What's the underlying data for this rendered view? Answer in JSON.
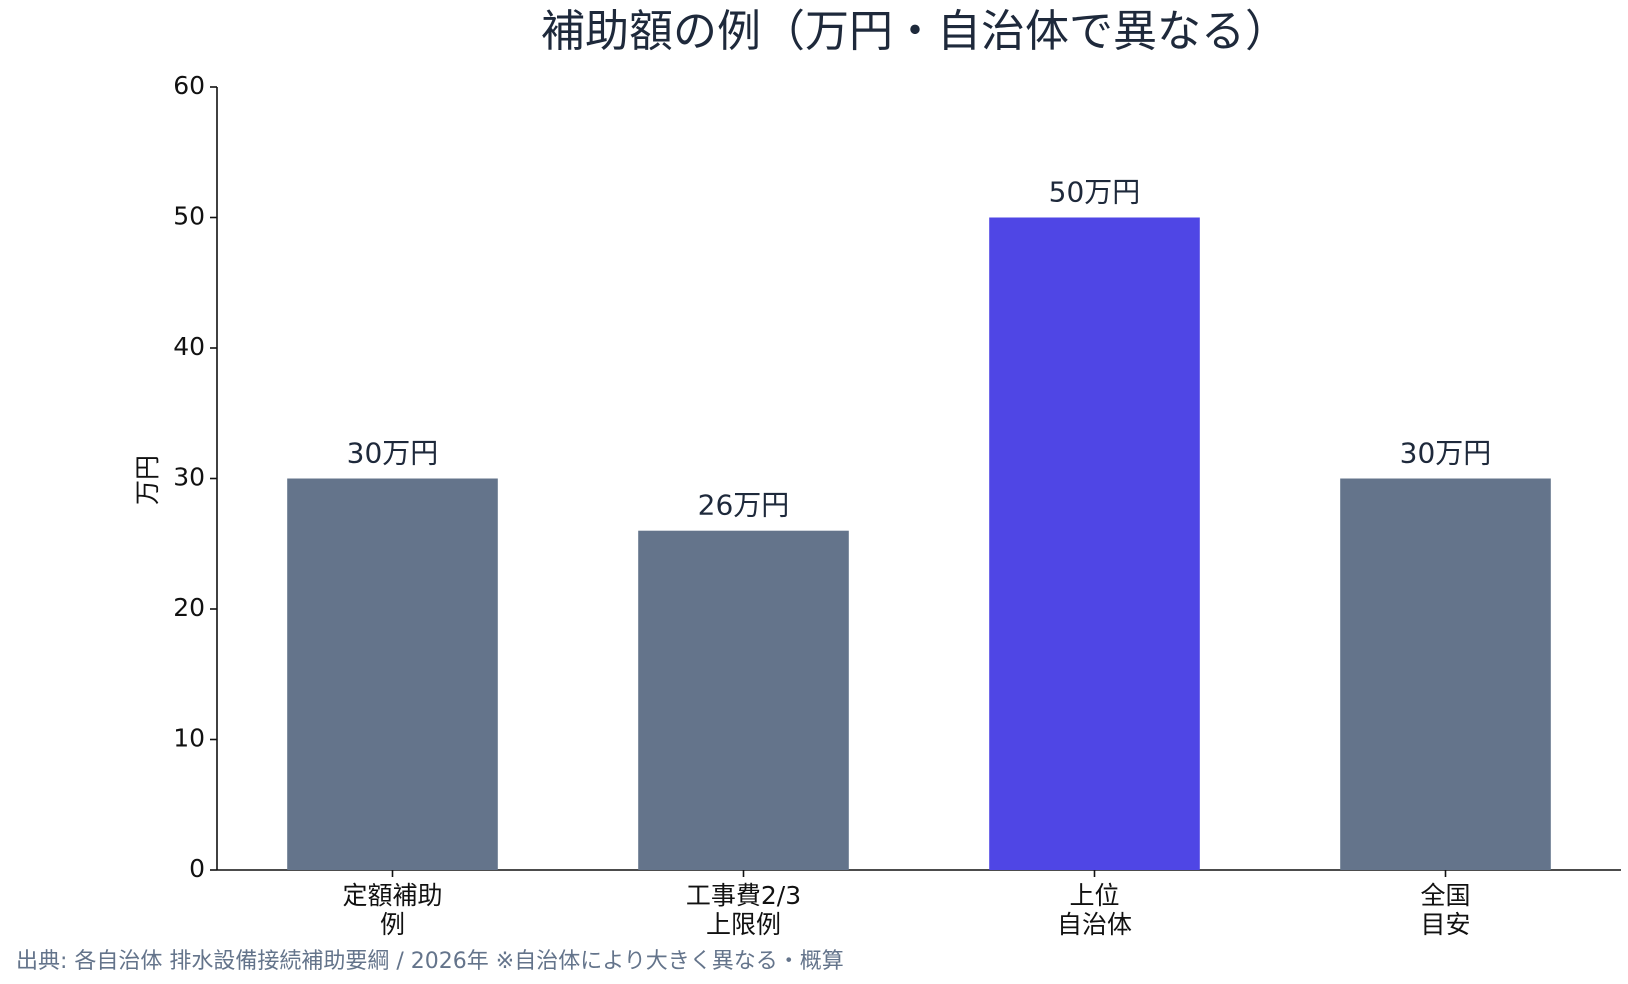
{
  "chart_data": {
    "type": "bar",
    "title": "補助額の例（万円・自治体で異なる）",
    "categories": [
      "定額補助\n例",
      "工事費2/3\n上限例",
      "上位\n自治体",
      "全国\n目安"
    ],
    "values": [
      30,
      26,
      50,
      30
    ],
    "value_labels": [
      "30万円",
      "26万円",
      "50万円",
      "30万円"
    ],
    "colors": [
      "#64748b",
      "#64748b",
      "#4f46e5",
      "#64748b"
    ],
    "ylabel": "万円",
    "ylim": [
      0,
      60
    ],
    "yticks": [
      0,
      10,
      20,
      30,
      40,
      50,
      60
    ],
    "grid": false,
    "source": "出典: 各自治体 排水設備接続補助要綱 / 2026年 ※自治体により大きく異なる・概算"
  }
}
